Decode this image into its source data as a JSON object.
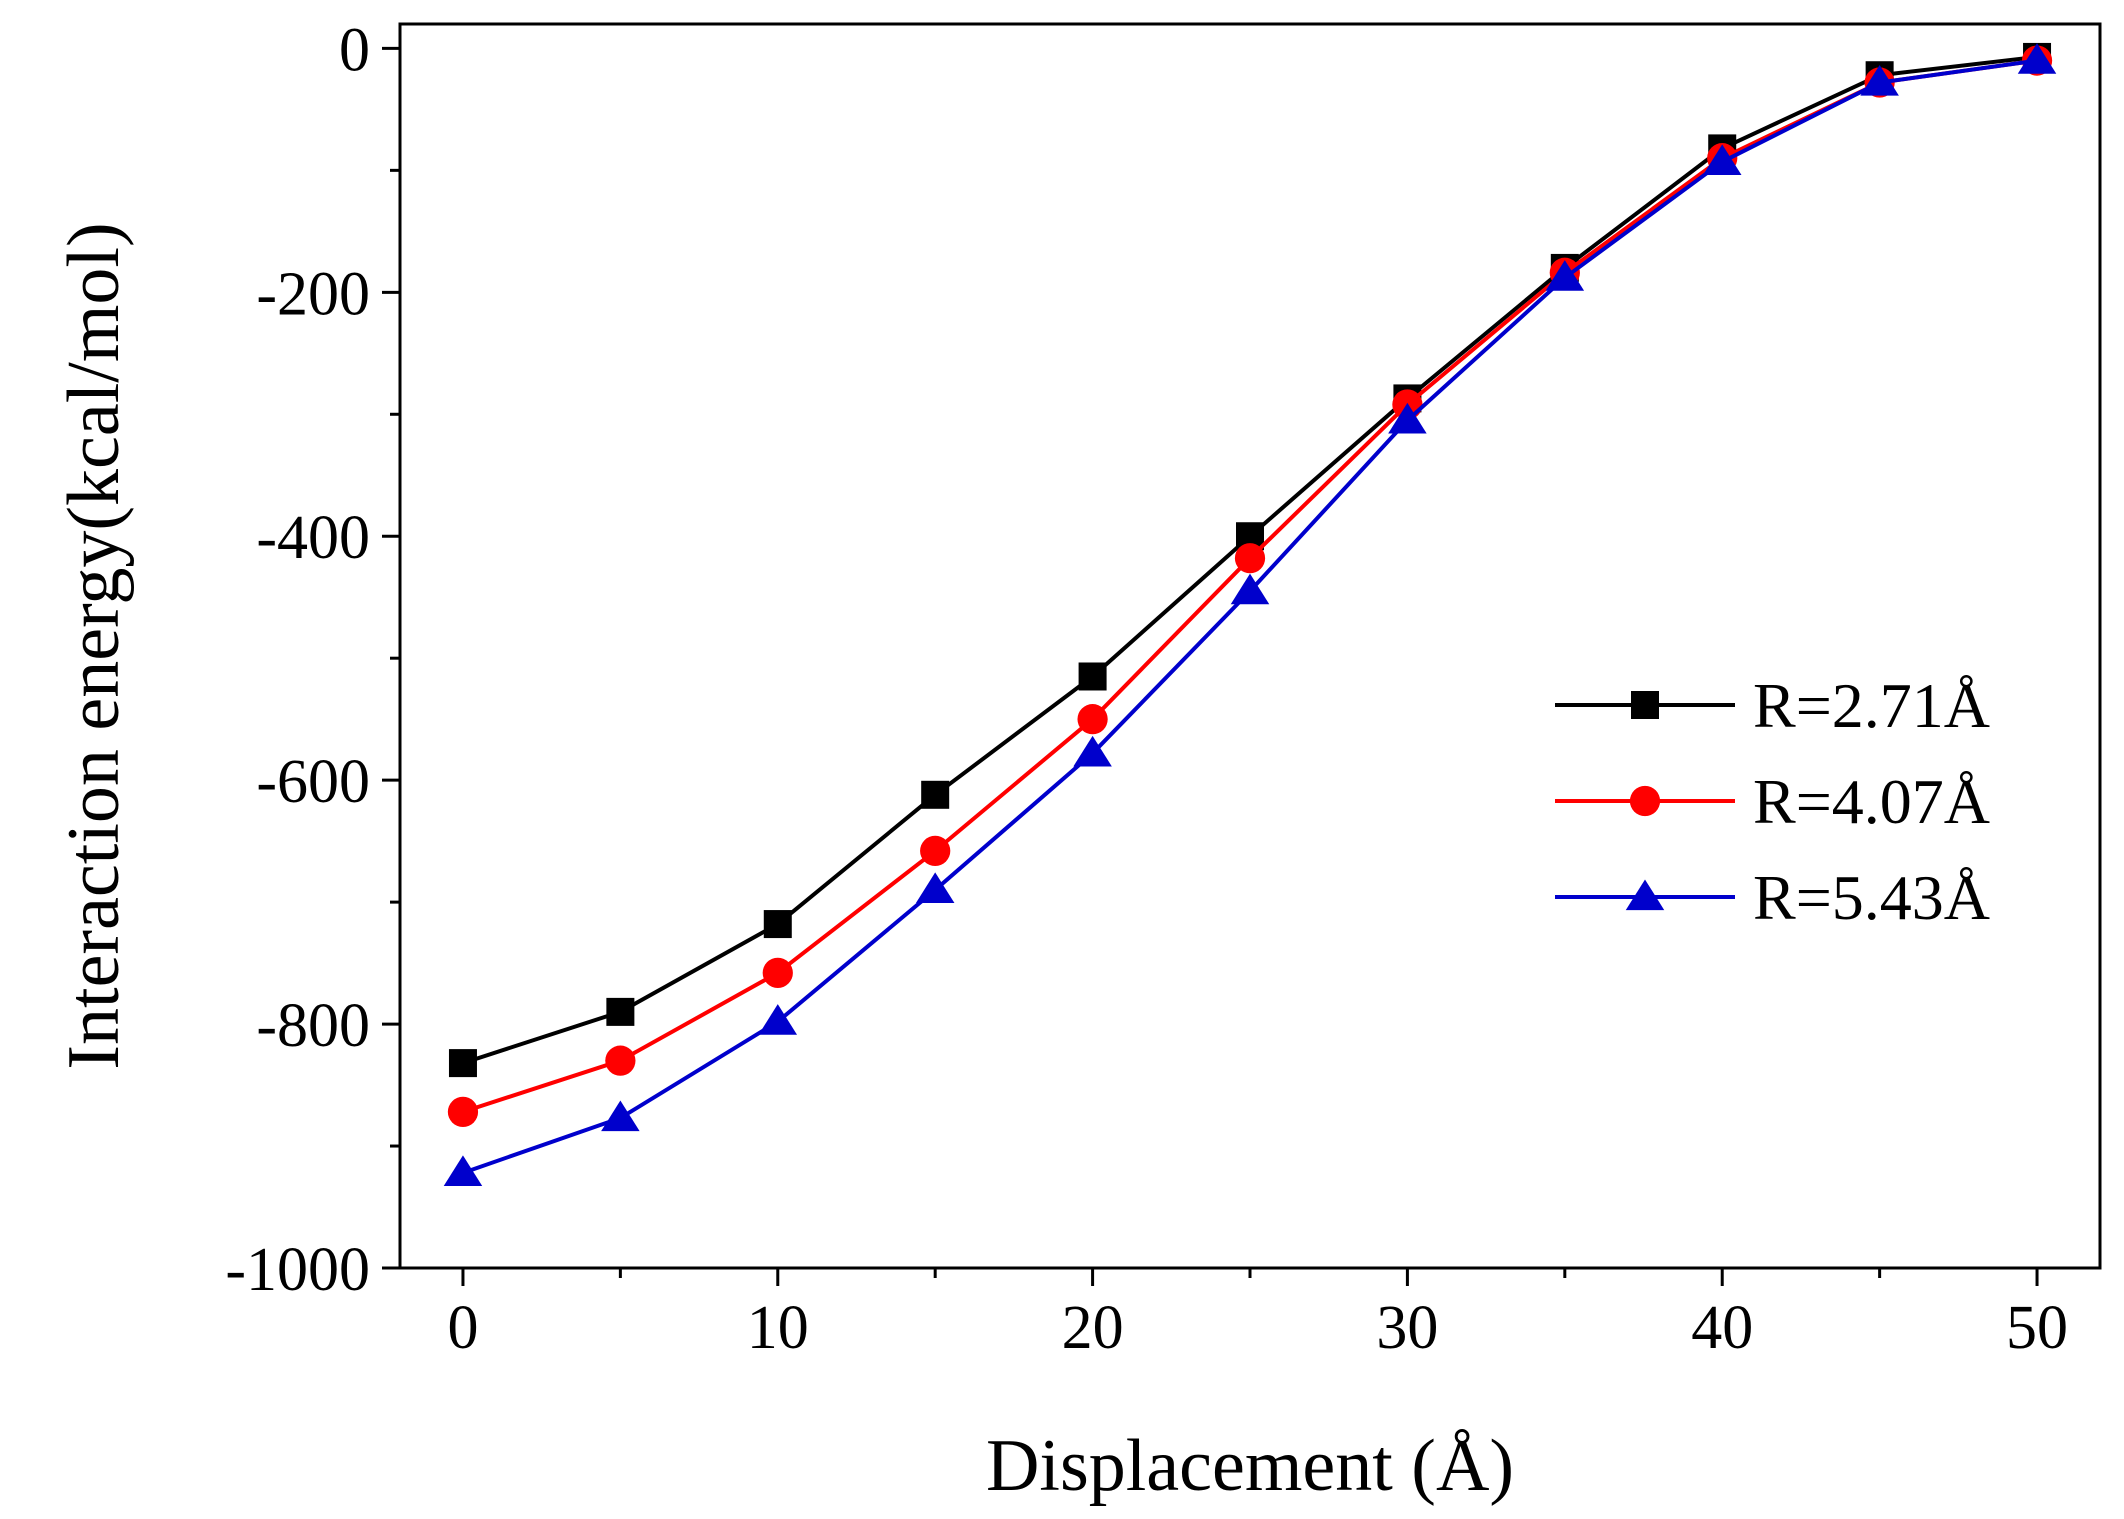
{
  "chart_data": {
    "type": "line",
    "title": "",
    "xlabel": "Displacement (Å)",
    "ylabel": "Interaction energy(kcal/mol)",
    "xlim": [
      -2,
      52
    ],
    "ylim": [
      -1000,
      20
    ],
    "x_ticks": [
      0,
      10,
      20,
      30,
      40,
      50
    ],
    "y_ticks": [
      0,
      -200,
      -400,
      -600,
      -800,
      -1000
    ],
    "x_minor_ticks": [
      5,
      15,
      25,
      35,
      45
    ],
    "y_minor_ticks": [
      -100,
      -300,
      -500,
      -700,
      -900
    ],
    "grid": false,
    "legend_position": "center-right",
    "x": [
      0,
      5,
      10,
      15,
      20,
      25,
      30,
      35,
      40,
      45,
      50
    ],
    "series": [
      {
        "name": "R=2.71Å",
        "color": "#000000",
        "marker": "square",
        "values": [
          -832,
          -790,
          -718,
          -612,
          -515,
          -400,
          -287,
          -180,
          -82,
          -22,
          -7
        ]
      },
      {
        "name": "R=4.07Å",
        "color": "#ff0000",
        "marker": "circle",
        "values": [
          -872,
          -830,
          -758,
          -658,
          -550,
          -418,
          -292,
          -184,
          -90,
          -28,
          -10
        ]
      },
      {
        "name": "R=5.43Å",
        "color": "#0000cc",
        "marker": "triangle",
        "values": [
          -922,
          -877,
          -798,
          -690,
          -578,
          -445,
          -305,
          -188,
          -93,
          -28,
          -10
        ]
      }
    ]
  }
}
